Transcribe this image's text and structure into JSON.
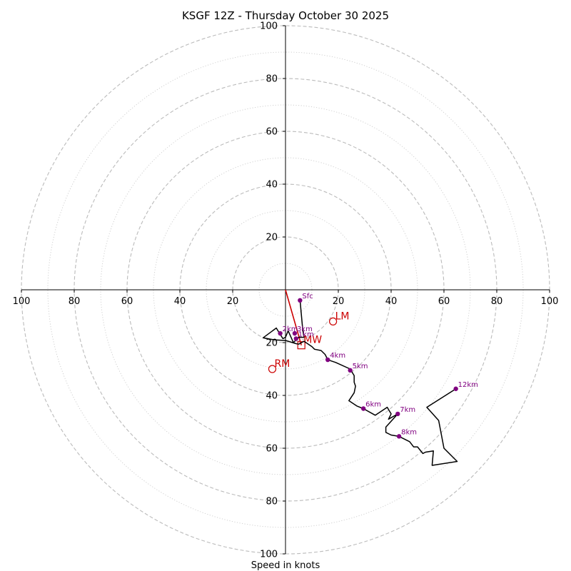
{
  "chart_data": {
    "type": "hodograph",
    "title": "KSGF 12Z - Thursday October 30 2025",
    "xlabel": "Speed in knots",
    "units": "knots",
    "xlim": [
      -100,
      100
    ],
    "ylim": [
      -100,
      100
    ],
    "ring_major": [
      20,
      40,
      60,
      80,
      100
    ],
    "ring_minor": [
      10,
      30,
      50,
      70,
      90
    ],
    "axis_ticks": [
      {
        "value": -100,
        "label": "100"
      },
      {
        "value": -80,
        "label": "80"
      },
      {
        "value": -60,
        "label": "60"
      },
      {
        "value": -40,
        "label": "40"
      },
      {
        "value": -20,
        "label": "20"
      },
      {
        "value": 20,
        "label": "20"
      },
      {
        "value": 40,
        "label": "40"
      },
      {
        "value": 60,
        "label": "60"
      },
      {
        "value": 80,
        "label": "80"
      },
      {
        "value": 100,
        "label": "100"
      }
    ],
    "colors": {
      "trace": "#000000",
      "markers": "#800080",
      "motion": "#cc0000",
      "grid": "#bbbbbb",
      "minor_grid": "#cccccc"
    },
    "trace_uv": [
      [
        5.5,
        -4
      ],
      [
        6.5,
        -15
      ],
      [
        7,
        -18
      ],
      [
        5,
        -18
      ],
      [
        4,
        -19
      ],
      [
        3,
        -20
      ],
      [
        1,
        -15.5
      ],
      [
        0,
        -18
      ],
      [
        -1,
        -18.5
      ],
      [
        -3.5,
        -14.5
      ],
      [
        -8.5,
        -18.2
      ],
      [
        -4,
        -19
      ],
      [
        0,
        -19.2
      ],
      [
        4,
        -20.4
      ],
      [
        5,
        -20.6
      ],
      [
        7,
        -19.5
      ],
      [
        10,
        -21.5
      ],
      [
        11,
        -22.5
      ],
      [
        13.5,
        -23
      ],
      [
        15,
        -24.5
      ],
      [
        16,
        -26.5
      ],
      [
        19,
        -27.5
      ],
      [
        24.5,
        -30
      ],
      [
        26,
        -32.5
      ],
      [
        26,
        -35
      ],
      [
        26.5,
        -36.5
      ],
      [
        26,
        -39
      ],
      [
        24,
        -42
      ],
      [
        27,
        -44
      ],
      [
        29.5,
        -45
      ],
      [
        34,
        -47.5
      ],
      [
        38.5,
        -44.5
      ],
      [
        40,
        -47
      ],
      [
        39,
        -49
      ],
      [
        42.5,
        -47
      ],
      [
        38,
        -52
      ],
      [
        38,
        -54
      ],
      [
        40,
        -55
      ],
      [
        43,
        -55.5
      ],
      [
        47,
        -57.5
      ],
      [
        48.5,
        -59.5
      ],
      [
        50,
        -59.5
      ],
      [
        52,
        -62
      ],
      [
        53,
        -61.5
      ],
      [
        56,
        -61
      ],
      [
        55.5,
        -66.5
      ],
      [
        65,
        -65
      ],
      [
        60,
        -60
      ],
      [
        58,
        -49.5
      ],
      [
        53.5,
        -44.5
      ],
      [
        64.5,
        -37.5
      ]
    ],
    "height_markers": [
      {
        "label": "Sfc",
        "u": 5.5,
        "v": -4
      },
      {
        "label": "1km",
        "u": 4,
        "v": -18.5
      },
      {
        "label": "2km",
        "u": -2,
        "v": -16.5
      },
      {
        "label": "3km",
        "u": 3.5,
        "v": -16.5
      },
      {
        "label": "4km",
        "u": 16,
        "v": -26.5
      },
      {
        "label": "5km",
        "u": 24.5,
        "v": -30.5
      },
      {
        "label": "6km",
        "u": 29.5,
        "v": -45
      },
      {
        "label": "7km",
        "u": 42.5,
        "v": -47
      },
      {
        "label": "8km",
        "u": 43,
        "v": -55.5
      },
      {
        "label": "12km",
        "u": 64.5,
        "v": -37.5
      }
    ],
    "storm_motion": {
      "mean_wind": {
        "label": "MW",
        "u": 6,
        "v": -21
      },
      "left_mover": {
        "label": "LM",
        "u": 18,
        "v": -12
      },
      "right_mover": {
        "label": "RM",
        "u": -5,
        "v": -30
      }
    },
    "motion_vector": {
      "from_u": 0,
      "from_v": 0,
      "to_u": 6,
      "to_v": -21
    }
  }
}
